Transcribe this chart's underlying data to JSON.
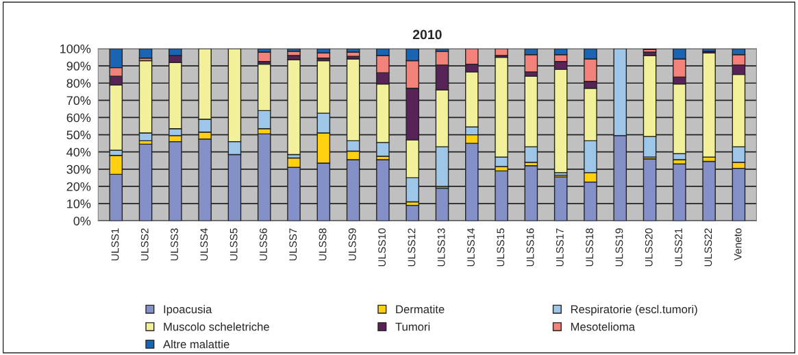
{
  "chart_data": {
    "type": "bar",
    "title": "2010",
    "stacked": true,
    "categories": [
      "ULSS1",
      "ULSS2",
      "ULSS3",
      "ULSS4",
      "ULSS5",
      "ULSS6",
      "ULSS7",
      "ULSS8",
      "ULSS9",
      "ULSS10",
      "ULSS12",
      "ULSS13",
      "ULSS14",
      "ULSS15",
      "ULSS16",
      "ULSS17",
      "ULSS18",
      "ULSS19",
      "ULSS20",
      "ULSS21",
      "ULSS22",
      "Veneto"
    ],
    "series": [
      {
        "name": "Ipoacusia",
        "color": "#8490c8",
        "values": [
          27,
          44.5,
          46,
          47.5,
          38.5,
          50.5,
          31,
          33.5,
          35.5,
          35.5,
          9,
          19,
          45,
          29,
          32,
          25.5,
          22.5,
          49.5,
          36,
          33,
          34.5,
          30.5
        ]
      },
      {
        "name": "Dermatite",
        "color": "#ffd010",
        "values": [
          11,
          2,
          3.5,
          4,
          0,
          3,
          5.5,
          17.5,
          5,
          2,
          2,
          1,
          5,
          2.5,
          2,
          1,
          5.5,
          0,
          1,
          2.5,
          2.5,
          3.5
        ]
      },
      {
        "name": "Respiratorie (escl.tumori)",
        "color": "#9dc6e8",
        "values": [
          3,
          4.5,
          4,
          7.5,
          7.5,
          10.5,
          2,
          11.5,
          6,
          8,
          14,
          23,
          4.5,
          5.5,
          9,
          1.5,
          18.5,
          50.5,
          12,
          3.5,
          0,
          9
        ]
      },
      {
        "name": "Muscolo scheletriche",
        "color": "#f3f09a",
        "values": [
          38,
          42,
          38.5,
          41,
          54,
          27,
          55,
          30.5,
          47.5,
          34,
          22,
          33,
          32,
          58,
          41,
          60,
          30.5,
          0,
          47,
          40.5,
          60.5,
          42
        ]
      },
      {
        "name": "Tumori",
        "color": "#582457",
        "values": [
          5,
          0,
          4,
          0,
          0,
          1.5,
          2.5,
          1.5,
          1.5,
          6.5,
          30,
          14.5,
          4.5,
          1,
          2.5,
          4.5,
          4,
          0,
          2,
          4,
          1,
          5.5
        ]
      },
      {
        "name": "Mesotelioma",
        "color": "#f2827a",
        "values": [
          5,
          1.5,
          0,
          0,
          0,
          5.5,
          2.5,
          3,
          2.5,
          10,
          16,
          8,
          9,
          4,
          10,
          4,
          13,
          0,
          1.5,
          10.5,
          0,
          6
        ]
      },
      {
        "name": "Altre malattie",
        "color": "#1a64b4",
        "values": [
          11,
          5.5,
          4,
          0,
          0,
          2,
          1.5,
          2.5,
          2,
          4,
          7,
          1.5,
          0,
          0,
          3.5,
          3.5,
          6,
          0,
          0.5,
          6,
          1.5,
          3.5
        ]
      }
    ],
    "ylim": [
      0,
      100
    ],
    "yticks": [
      {
        "value": 0,
        "label": "0%"
      },
      {
        "value": 10,
        "label": "10%"
      },
      {
        "value": 20,
        "label": "20%"
      },
      {
        "value": 30,
        "label": "30%"
      },
      {
        "value": 40,
        "label": "40%"
      },
      {
        "value": 50,
        "label": "50%"
      },
      {
        "value": 60,
        "label": "60%"
      },
      {
        "value": 70,
        "label": "70%"
      },
      {
        "value": 80,
        "label": "80%"
      },
      {
        "value": 90,
        "label": "90%"
      },
      {
        "value": 100,
        "label": "100%"
      }
    ],
    "grid": "y",
    "legend": "bottom"
  }
}
